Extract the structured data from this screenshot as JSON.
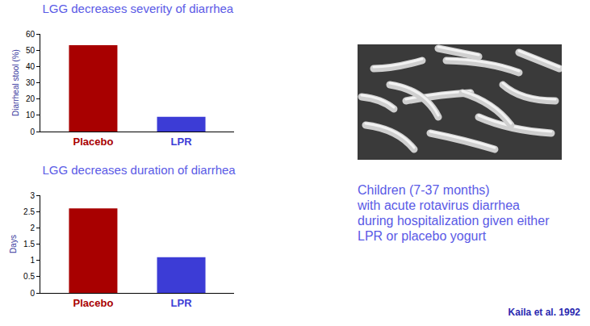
{
  "chart_data": [
    {
      "type": "bar",
      "title": "LGG decreases severity of diarrhea",
      "y_label": "Diarrheal stool (%)",
      "categories": [
        "Placebo",
        "LPR"
      ],
      "values": [
        53,
        9
      ],
      "colors": [
        "#a80000",
        "#3c3cd6"
      ],
      "ylim": [
        0,
        60
      ],
      "yticks": [
        0,
        10,
        20,
        30,
        40,
        50,
        60
      ],
      "grid": false
    },
    {
      "type": "bar",
      "title": "LGG decreases duration of diarrhea",
      "y_label": "Days",
      "categories": [
        "Placebo",
        "LPR"
      ],
      "values": [
        2.6,
        1.1
      ],
      "colors": [
        "#a80000",
        "#3c3cd6"
      ],
      "ylim": [
        0,
        3
      ],
      "yticks": [
        0,
        0.5,
        1,
        1.5,
        2,
        2.5,
        3
      ],
      "grid": false
    }
  ],
  "caption": [
    "Children (7-37 months)",
    "with acute rotavirus diarrhea",
    "during hospitalization given either",
    "LPR or placebo yogurt"
  ],
  "source": "Kaila et al. 1992"
}
